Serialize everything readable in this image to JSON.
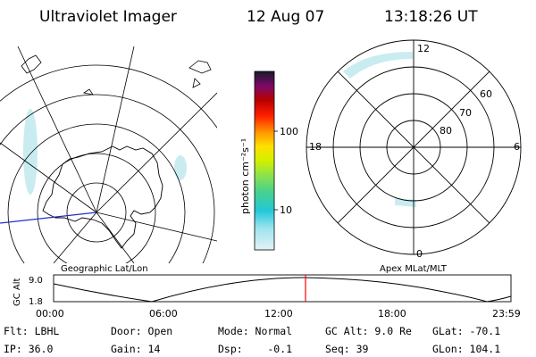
{
  "header": {
    "title": "Ultraviolet Imager",
    "date": "12 Aug 07",
    "time": "13:18:26 UT"
  },
  "left_panel": {
    "label": "Geographic Lat/Lon"
  },
  "right_panel": {
    "label": "Apex MLat/MLT",
    "mlt_labels": {
      "top": "12",
      "bottom": "0",
      "left": "18",
      "right": "6"
    },
    "mlat_labels": [
      "60",
      "70",
      "80"
    ]
  },
  "colorbar": {
    "unit": "photon cm⁻²s⁻¹",
    "ticks": [
      "100",
      "10"
    ],
    "scale": "log",
    "colors": [
      "#d8eef4",
      "#22c8d8",
      "#6ed26e",
      "#c8f000",
      "#ffe000",
      "#ff9600",
      "#ff2000",
      "#b80000",
      "#800080",
      "#1a1a2a"
    ]
  },
  "altitude_plot": {
    "ylabel": "GC Alt",
    "y_ticks": [
      "9.0",
      "1.8"
    ],
    "x_ticks": [
      "00:00",
      "06:00",
      "12:00",
      "18:00",
      "23:59"
    ],
    "current_marker_time": "13:18",
    "marker_color": "#ff0000"
  },
  "info": {
    "flt": "Flt: LBHL",
    "ip": "IP: 36.0",
    "door": "Door: Open",
    "gain": "Gain: 14",
    "mode": "Mode: Normal",
    "dsp": "Dsp:    -0.1",
    "gcalt": "GC Alt: 9.0 Re",
    "seq": "Seq: 39",
    "glat": "GLat: -70.1",
    "glon": "GLon: 104.1"
  }
}
